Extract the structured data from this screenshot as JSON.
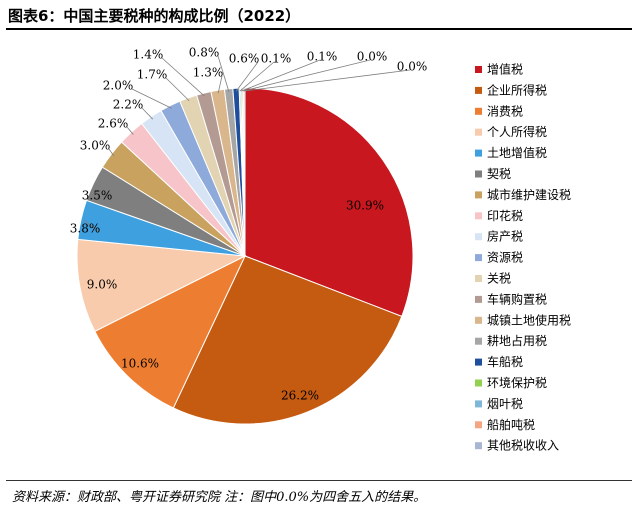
{
  "title": "图表6：中国主要税种的构成比例（2022）",
  "source": "资料来源：财政部、粤开证券研究院 注：图中0.0%为四舍五入的结果。",
  "chart_data": {
    "type": "pie",
    "title": "",
    "legend_position": "right",
    "slices": [
      {
        "name": "增值税",
        "value": 30.9,
        "label": "30.9%",
        "color": "#c8171e"
      },
      {
        "name": "企业所得税",
        "value": 26.2,
        "label": "26.2%",
        "color": "#c55a11"
      },
      {
        "name": "消费税",
        "value": 10.6,
        "label": "10.6%",
        "color": "#ed7d31"
      },
      {
        "name": "个人所得税",
        "value": 9.0,
        "label": "9.0%",
        "color": "#f8cbad"
      },
      {
        "name": "土地增值税",
        "value": 3.8,
        "label": "3.8%",
        "color": "#3fa0e0"
      },
      {
        "name": "契税",
        "value": 3.5,
        "label": "3.5%",
        "color": "#7f7f7f"
      },
      {
        "name": "城市维护建设税",
        "value": 3.0,
        "label": "3.0%",
        "color": "#c9a25f"
      },
      {
        "name": "印花税",
        "value": 2.6,
        "label": "2.6%",
        "color": "#f7c5c9"
      },
      {
        "name": "房产税",
        "value": 2.2,
        "label": "2.2%",
        "color": "#d6e4f5"
      },
      {
        "name": "资源税",
        "value": 2.0,
        "label": "2.0%",
        "color": "#8eaadb"
      },
      {
        "name": "关税",
        "value": 1.7,
        "label": "1.7%",
        "color": "#e2d3b3"
      },
      {
        "name": "车辆购置税",
        "value": 1.4,
        "label": "1.4%",
        "color": "#b39a92"
      },
      {
        "name": "城镇土地使用税",
        "value": 1.3,
        "label": "1.3%",
        "color": "#d9b68c"
      },
      {
        "name": "耕地占用税",
        "value": 0.8,
        "label": "0.8%",
        "color": "#a6a6a6"
      },
      {
        "name": "车船税",
        "value": 0.6,
        "label": "0.6%",
        "color": "#1f4e9c"
      },
      {
        "name": "环境保护税",
        "value": 0.1,
        "label": "0.1%",
        "color": "#92d050"
      },
      {
        "name": "烟叶税",
        "value": 0.1,
        "label": "0.1%",
        "color": "#7fb7d8"
      },
      {
        "name": "船舶吨税",
        "value": 0.0,
        "label": "0.0%",
        "color": "#f4a582"
      },
      {
        "name": "其他税收收入",
        "value": 0.0,
        "label": "0.0%",
        "color": "#a9b6d3"
      }
    ]
  }
}
